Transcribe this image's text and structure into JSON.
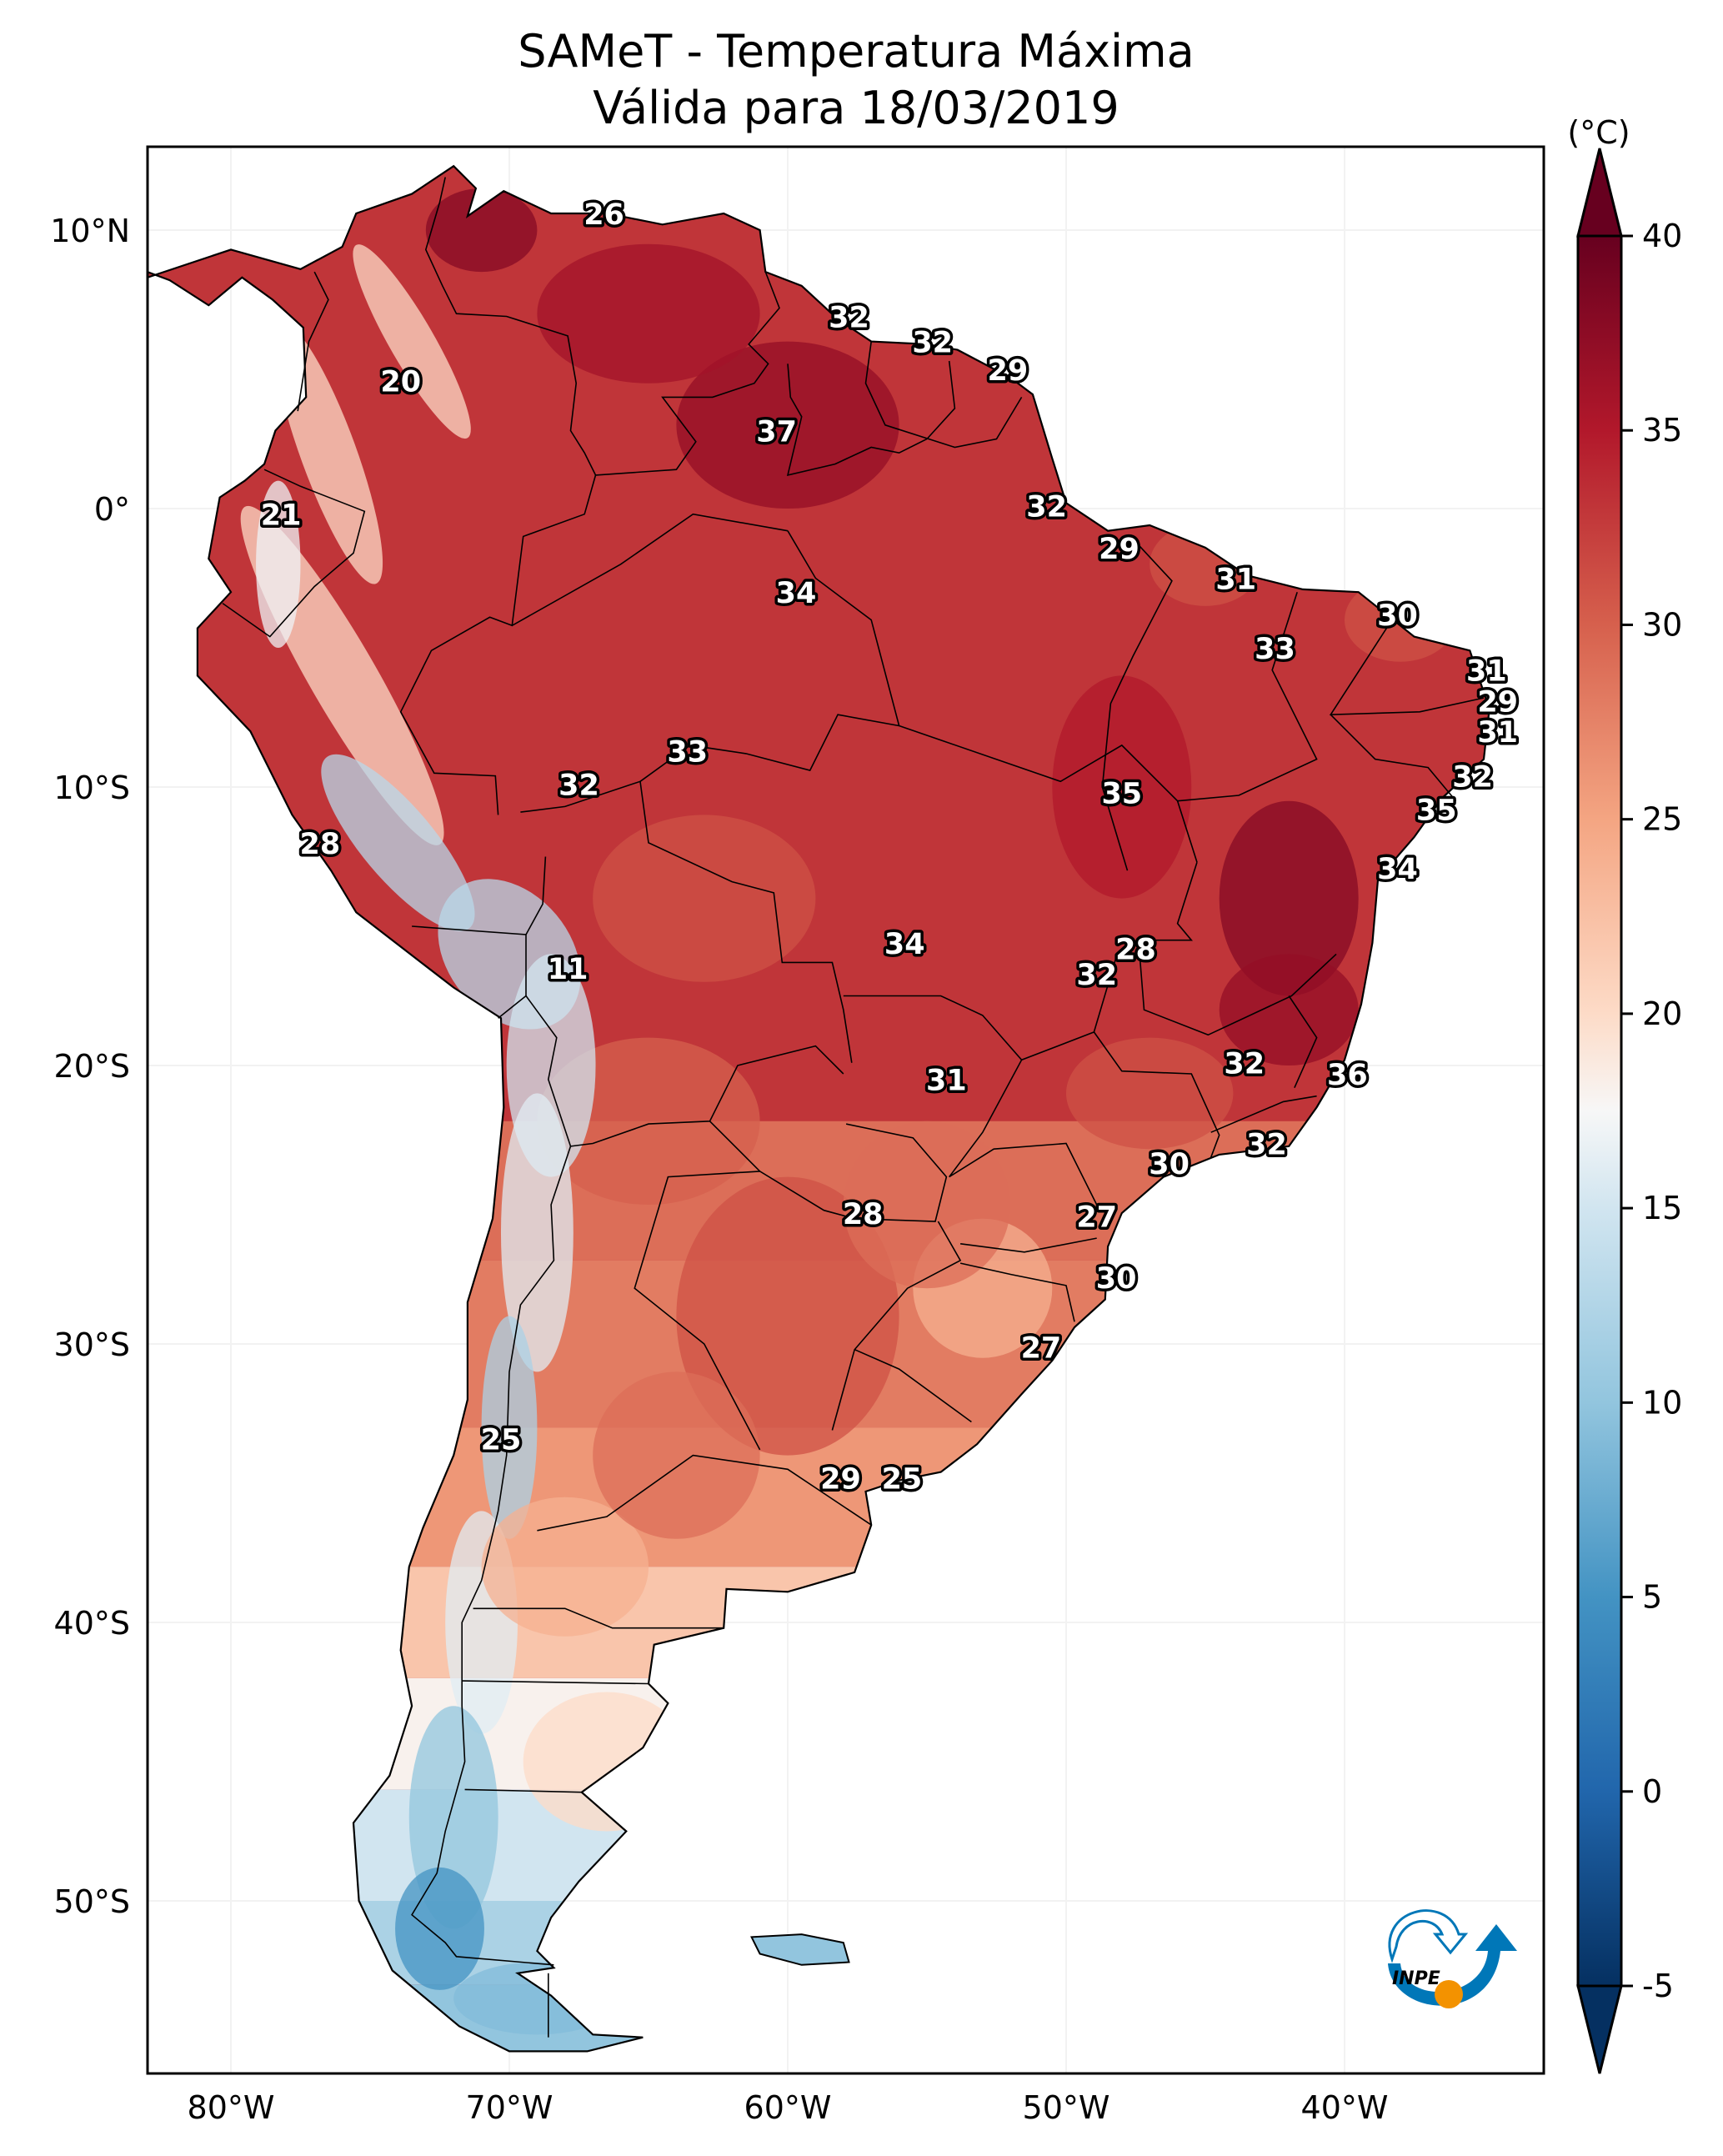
{
  "chart_data": {
    "type": "heatmap",
    "title": "SAMeT - Temperatura Máxima",
    "subtitle": "Válida para 18/03/2019",
    "variable": "Temperatura Máxima",
    "units_label": "(°C)",
    "date": "18/03/2019",
    "extent": {
      "lon": [
        -83,
        -33
      ],
      "lat": [
        -56.2,
        13
      ]
    },
    "x_ticks": [
      {
        "value": -80,
        "label": "80°W"
      },
      {
        "value": -70,
        "label": "70°W"
      },
      {
        "value": -60,
        "label": "60°W"
      },
      {
        "value": -50,
        "label": "50°W"
      },
      {
        "value": -40,
        "label": "40°W"
      }
    ],
    "y_ticks": [
      {
        "value": 10,
        "label": "10°N"
      },
      {
        "value": 0,
        "label": "0°"
      },
      {
        "value": -10,
        "label": "10°S"
      },
      {
        "value": -20,
        "label": "20°S"
      },
      {
        "value": -30,
        "label": "30°S"
      },
      {
        "value": -40,
        "label": "40°S"
      },
      {
        "value": -50,
        "label": "50°S"
      }
    ],
    "colorbar": {
      "colormap": "RdBu_r",
      "range": [
        -5,
        40
      ],
      "extend": "both",
      "ticks": [
        {
          "value": 40,
          "label": "40"
        },
        {
          "value": 35,
          "label": "35"
        },
        {
          "value": 30,
          "label": "30"
        },
        {
          "value": 25,
          "label": "25"
        },
        {
          "value": 20,
          "label": "20"
        },
        {
          "value": 15,
          "label": "15"
        },
        {
          "value": 10,
          "label": "10"
        },
        {
          "value": 5,
          "label": "5"
        },
        {
          "value": 0,
          "label": "0"
        },
        {
          "value": -5,
          "label": "-5"
        }
      ],
      "stops": [
        {
          "value": -5,
          "color": "#053061"
        },
        {
          "value": 0,
          "color": "#2166ac"
        },
        {
          "value": 5,
          "color": "#4393c3"
        },
        {
          "value": 10,
          "color": "#92c5de"
        },
        {
          "value": 15,
          "color": "#d1e5f0"
        },
        {
          "value": 17.5,
          "color": "#f7f7f7"
        },
        {
          "value": 20,
          "color": "#fddbc7"
        },
        {
          "value": 25,
          "color": "#f4a582"
        },
        {
          "value": 30,
          "color": "#d6604d"
        },
        {
          "value": 35,
          "color": "#b2182b"
        },
        {
          "value": 40,
          "color": "#67001f"
        }
      ]
    },
    "station_labels": [
      {
        "lon": -66.6,
        "lat": 10.6,
        "value": 26
      },
      {
        "lon": -73.9,
        "lat": 4.6,
        "value": 20
      },
      {
        "lon": -57.8,
        "lat": 6.9,
        "value": 32
      },
      {
        "lon": -54.8,
        "lat": 6.0,
        "value": 32
      },
      {
        "lon": -52.1,
        "lat": 5.0,
        "value": 29
      },
      {
        "lon": -60.4,
        "lat": 2.8,
        "value": 37
      },
      {
        "lon": -78.2,
        "lat": -0.2,
        "value": 21
      },
      {
        "lon": -50.7,
        "lat": 0.1,
        "value": 32
      },
      {
        "lon": -48.1,
        "lat": -1.4,
        "value": 29
      },
      {
        "lon": -59.7,
        "lat": -3.0,
        "value": 34
      },
      {
        "lon": -43.9,
        "lat": -2.5,
        "value": 31
      },
      {
        "lon": -38.1,
        "lat": -3.8,
        "value": 30
      },
      {
        "lon": -42.5,
        "lat": -5.0,
        "value": 33
      },
      {
        "lon": -34.9,
        "lat": -5.8,
        "value": 31
      },
      {
        "lon": -34.5,
        "lat": -6.9,
        "value": 29
      },
      {
        "lon": -34.5,
        "lat": -8.0,
        "value": 31
      },
      {
        "lon": -63.6,
        "lat": -8.7,
        "value": 33
      },
      {
        "lon": -35.4,
        "lat": -9.6,
        "value": 32
      },
      {
        "lon": -67.5,
        "lat": -9.9,
        "value": 32
      },
      {
        "lon": -48.0,
        "lat": -10.2,
        "value": 35
      },
      {
        "lon": -36.7,
        "lat": -10.8,
        "value": 35
      },
      {
        "lon": -76.8,
        "lat": -12.0,
        "value": 28
      },
      {
        "lon": -38.1,
        "lat": -12.9,
        "value": 34
      },
      {
        "lon": -55.8,
        "lat": -15.6,
        "value": 34
      },
      {
        "lon": -47.5,
        "lat": -15.8,
        "value": 28
      },
      {
        "lon": -67.9,
        "lat": -16.5,
        "value": 11
      },
      {
        "lon": -48.9,
        "lat": -16.7,
        "value": 32
      },
      {
        "lon": -43.6,
        "lat": -19.9,
        "value": 32
      },
      {
        "lon": -39.9,
        "lat": -20.3,
        "value": 36
      },
      {
        "lon": -54.3,
        "lat": -20.5,
        "value": 31
      },
      {
        "lon": -42.8,
        "lat": -22.8,
        "value": 32
      },
      {
        "lon": -46.3,
        "lat": -23.5,
        "value": 30
      },
      {
        "lon": -57.3,
        "lat": -25.3,
        "value": 28
      },
      {
        "lon": -48.9,
        "lat": -25.4,
        "value": 27
      },
      {
        "lon": -48.2,
        "lat": -27.6,
        "value": 30
      },
      {
        "lon": -50.9,
        "lat": -30.1,
        "value": 27
      },
      {
        "lon": -70.3,
        "lat": -33.4,
        "value": 25
      },
      {
        "lon": -58.1,
        "lat": -34.8,
        "value": 29
      },
      {
        "lon": -55.9,
        "lat": -34.8,
        "value": 25
      }
    ],
    "grid": true,
    "legend": "colorbar-right"
  },
  "logo": {
    "text": "INPE",
    "blue": "#0077b8",
    "orange": "#f39200"
  }
}
